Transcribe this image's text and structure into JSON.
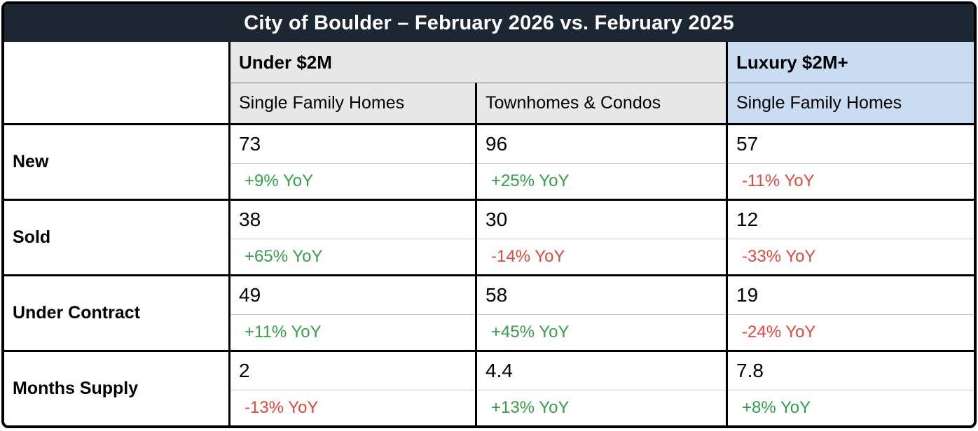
{
  "title": "City of Boulder – February 2026 vs. February 2025",
  "colors": {
    "title_bg": "#1c2733",
    "title_text": "#ffffff",
    "gray_header_bg": "#e7e7e7",
    "blue_header_bg": "#c9dcf1",
    "positive": "#34a048",
    "negative": "#e2493b"
  },
  "header": {
    "group_under_2m": "Under $2M",
    "group_luxury": "Luxury $2M+",
    "sub_columns": [
      "Single Family Homes",
      "Townhomes & Condos",
      "Single Family Homes"
    ]
  },
  "rows": [
    {
      "label": "New",
      "cells": [
        {
          "value": "73",
          "yoy": "+9% YoY",
          "trend": "positive"
        },
        {
          "value": "96",
          "yoy": "+25% YoY",
          "trend": "positive"
        },
        {
          "value": "57",
          "yoy": "-11% YoY",
          "trend": "negative"
        }
      ]
    },
    {
      "label": "Sold",
      "cells": [
        {
          "value": "38",
          "yoy": "+65% YoY",
          "trend": "positive"
        },
        {
          "value": "30",
          "yoy": "-14% YoY",
          "trend": "negative"
        },
        {
          "value": "12",
          "yoy": "-33% YoY",
          "trend": "negative"
        }
      ]
    },
    {
      "label": "Under Contract",
      "cells": [
        {
          "value": "49",
          "yoy": "+11% YoY",
          "trend": "positive"
        },
        {
          "value": "58",
          "yoy": "+45% YoY",
          "trend": "positive"
        },
        {
          "value": "19",
          "yoy": "-24% YoY",
          "trend": "negative"
        }
      ]
    },
    {
      "label": "Months Supply",
      "cells": [
        {
          "value": "2",
          "yoy": "-13% YoY",
          "trend": "negative"
        },
        {
          "value": "4.4",
          "yoy": "+13% YoY",
          "trend": "positive"
        },
        {
          "value": "7.8",
          "yoy": "+8% YoY",
          "trend": "positive"
        }
      ]
    }
  ],
  "chart_data": {
    "type": "table",
    "title": "City of Boulder – February 2026 vs. February 2025",
    "column_groups": [
      "Under $2M",
      "Under $2M",
      "Luxury $2M+"
    ],
    "columns": [
      "Single Family Homes",
      "Townhomes & Condos",
      "Single Family Homes"
    ],
    "row_labels": [
      "New",
      "Sold",
      "Under Contract",
      "Months Supply"
    ],
    "values": [
      [
        73,
        96,
        57
      ],
      [
        38,
        30,
        12
      ],
      [
        49,
        58,
        19
      ],
      [
        2,
        4.4,
        7.8
      ]
    ],
    "yoy_percent": [
      [
        9,
        25,
        -11
      ],
      [
        65,
        -14,
        -33
      ],
      [
        11,
        45,
        -24
      ],
      [
        -13,
        13,
        8
      ]
    ]
  }
}
